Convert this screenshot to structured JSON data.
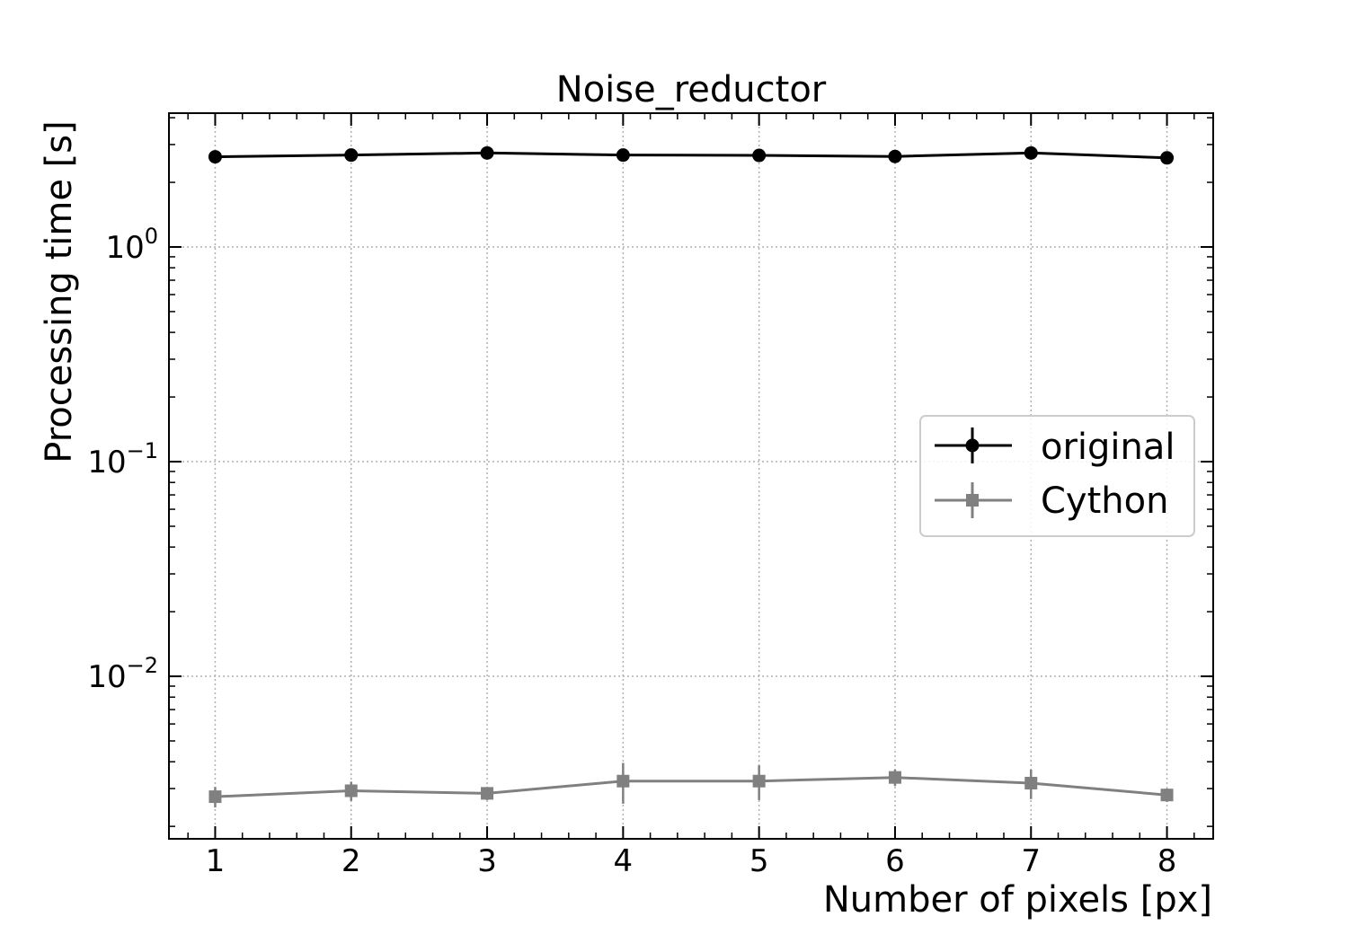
{
  "chart_data": {
    "type": "line",
    "title": "Noise_reductor",
    "xlabel": "Number of pixels [px]",
    "ylabel": "Processing time [s]",
    "yscale": "log",
    "x": [
      1,
      2,
      3,
      4,
      5,
      6,
      7,
      8
    ],
    "xticks": [
      "1",
      "2",
      "3",
      "4",
      "5",
      "6",
      "7",
      "8"
    ],
    "xlim": [
      0.66,
      8.34
    ],
    "ylim": [
      0.00175,
      4.2
    ],
    "yticks": [
      {
        "value": 1,
        "base": "10",
        "exp": "0"
      },
      {
        "value": 0.1,
        "base": "10",
        "exp": "−1"
      },
      {
        "value": 0.01,
        "base": "10",
        "exp": "−2"
      }
    ],
    "grid": true,
    "legend_position": "center-right",
    "series": [
      {
        "name": "original",
        "color": "#000000",
        "marker": "circle",
        "values": [
          2.63,
          2.68,
          2.74,
          2.68,
          2.67,
          2.64,
          2.74,
          2.6
        ],
        "errors": [
          0.15,
          0.15,
          0.15,
          0.15,
          0.15,
          0.15,
          0.15,
          0.15
        ]
      },
      {
        "name": "Cython",
        "color": "#808080",
        "marker": "square",
        "values": [
          0.00275,
          0.00293,
          0.00285,
          0.00325,
          0.00325,
          0.00338,
          0.00318,
          0.0028
        ],
        "errors": [
          0.0003,
          0.0003,
          0.0002,
          0.0007,
          0.0006,
          0.0003,
          0.0005,
          0.0002
        ]
      }
    ]
  }
}
